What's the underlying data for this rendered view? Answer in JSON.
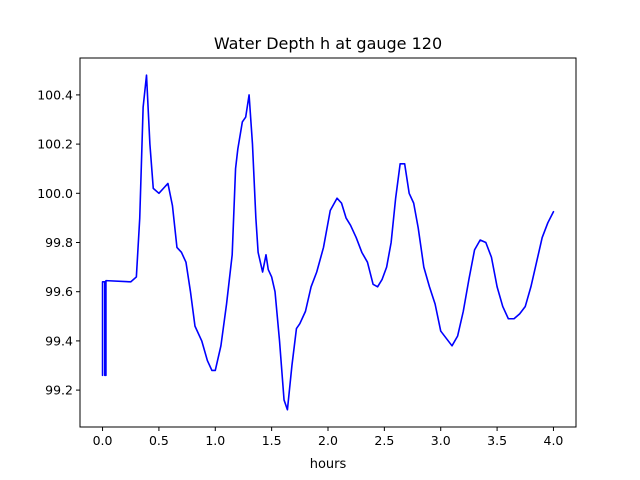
{
  "chart_data": {
    "type": "line",
    "title": "Water Depth h at gauge 120",
    "xlabel": "hours",
    "ylabel": "",
    "xlim": [
      -0.2,
      4.2
    ],
    "ylim": [
      99.05,
      100.55
    ],
    "xticks": [
      0.0,
      0.5,
      1.0,
      1.5,
      2.0,
      2.5,
      3.0,
      3.5,
      4.0
    ],
    "xtick_labels": [
      "0.0",
      "0.5",
      "1.0",
      "1.5",
      "2.0",
      "2.5",
      "3.0",
      "3.5",
      "4.0"
    ],
    "yticks": [
      99.2,
      99.4,
      99.6,
      99.8,
      100.0,
      100.2,
      100.4
    ],
    "ytick_labels": [
      "99.2",
      "99.4",
      "99.6",
      "99.8",
      "100.0",
      "100.2",
      "100.4"
    ],
    "grid": false,
    "legend": "none",
    "series": [
      {
        "color": "#0000ff",
        "x": [
          0.0,
          0.0,
          0.0,
          0.02,
          0.02,
          0.02,
          0.03,
          0.03,
          0.03,
          0.25,
          0.3,
          0.33,
          0.36,
          0.39,
          0.42,
          0.45,
          0.5,
          0.54,
          0.58,
          0.62,
          0.66,
          0.7,
          0.74,
          0.78,
          0.82,
          0.88,
          0.93,
          0.97,
          1.0,
          1.05,
          1.1,
          1.15,
          1.18,
          1.2,
          1.24,
          1.27,
          1.3,
          1.33,
          1.36,
          1.38,
          1.42,
          1.45,
          1.47,
          1.5,
          1.53,
          1.57,
          1.61,
          1.64,
          1.68,
          1.72,
          1.75,
          1.8,
          1.85,
          1.9,
          1.96,
          2.02,
          2.08,
          2.12,
          2.16,
          2.2,
          2.25,
          2.3,
          2.35,
          2.4,
          2.44,
          2.48,
          2.52,
          2.56,
          2.6,
          2.64,
          2.68,
          2.72,
          2.76,
          2.8,
          2.85,
          2.9,
          2.95,
          3.0,
          3.05,
          3.1,
          3.15,
          3.2,
          3.25,
          3.3,
          3.35,
          3.4,
          3.45,
          3.5,
          3.55,
          3.6,
          3.65,
          3.7,
          3.75,
          3.8,
          3.85,
          3.9,
          3.95,
          4.0
        ],
        "y": [
          99.64,
          99.26,
          99.64,
          99.64,
          99.26,
          99.64,
          99.64,
          99.26,
          99.645,
          99.64,
          99.66,
          99.9,
          100.35,
          100.48,
          100.2,
          100.02,
          100.0,
          100.02,
          100.04,
          99.95,
          99.78,
          99.76,
          99.72,
          99.6,
          99.46,
          99.4,
          99.32,
          99.28,
          99.28,
          99.38,
          99.55,
          99.75,
          100.1,
          100.18,
          100.29,
          100.31,
          100.4,
          100.2,
          99.9,
          99.76,
          99.68,
          99.75,
          99.69,
          99.66,
          99.6,
          99.4,
          99.16,
          99.12,
          99.3,
          99.45,
          99.47,
          99.52,
          99.62,
          99.68,
          99.78,
          99.93,
          99.98,
          99.96,
          99.9,
          99.87,
          99.82,
          99.76,
          99.72,
          99.63,
          99.62,
          99.65,
          99.7,
          99.8,
          99.98,
          100.12,
          100.12,
          100.0,
          99.96,
          99.86,
          99.7,
          99.62,
          99.55,
          99.44,
          99.41,
          99.38,
          99.42,
          99.52,
          99.65,
          99.77,
          99.81,
          99.8,
          99.74,
          99.62,
          99.54,
          99.49,
          99.49,
          99.51,
          99.54,
          99.62,
          99.72,
          99.82,
          99.88,
          99.925
        ]
      }
    ]
  }
}
